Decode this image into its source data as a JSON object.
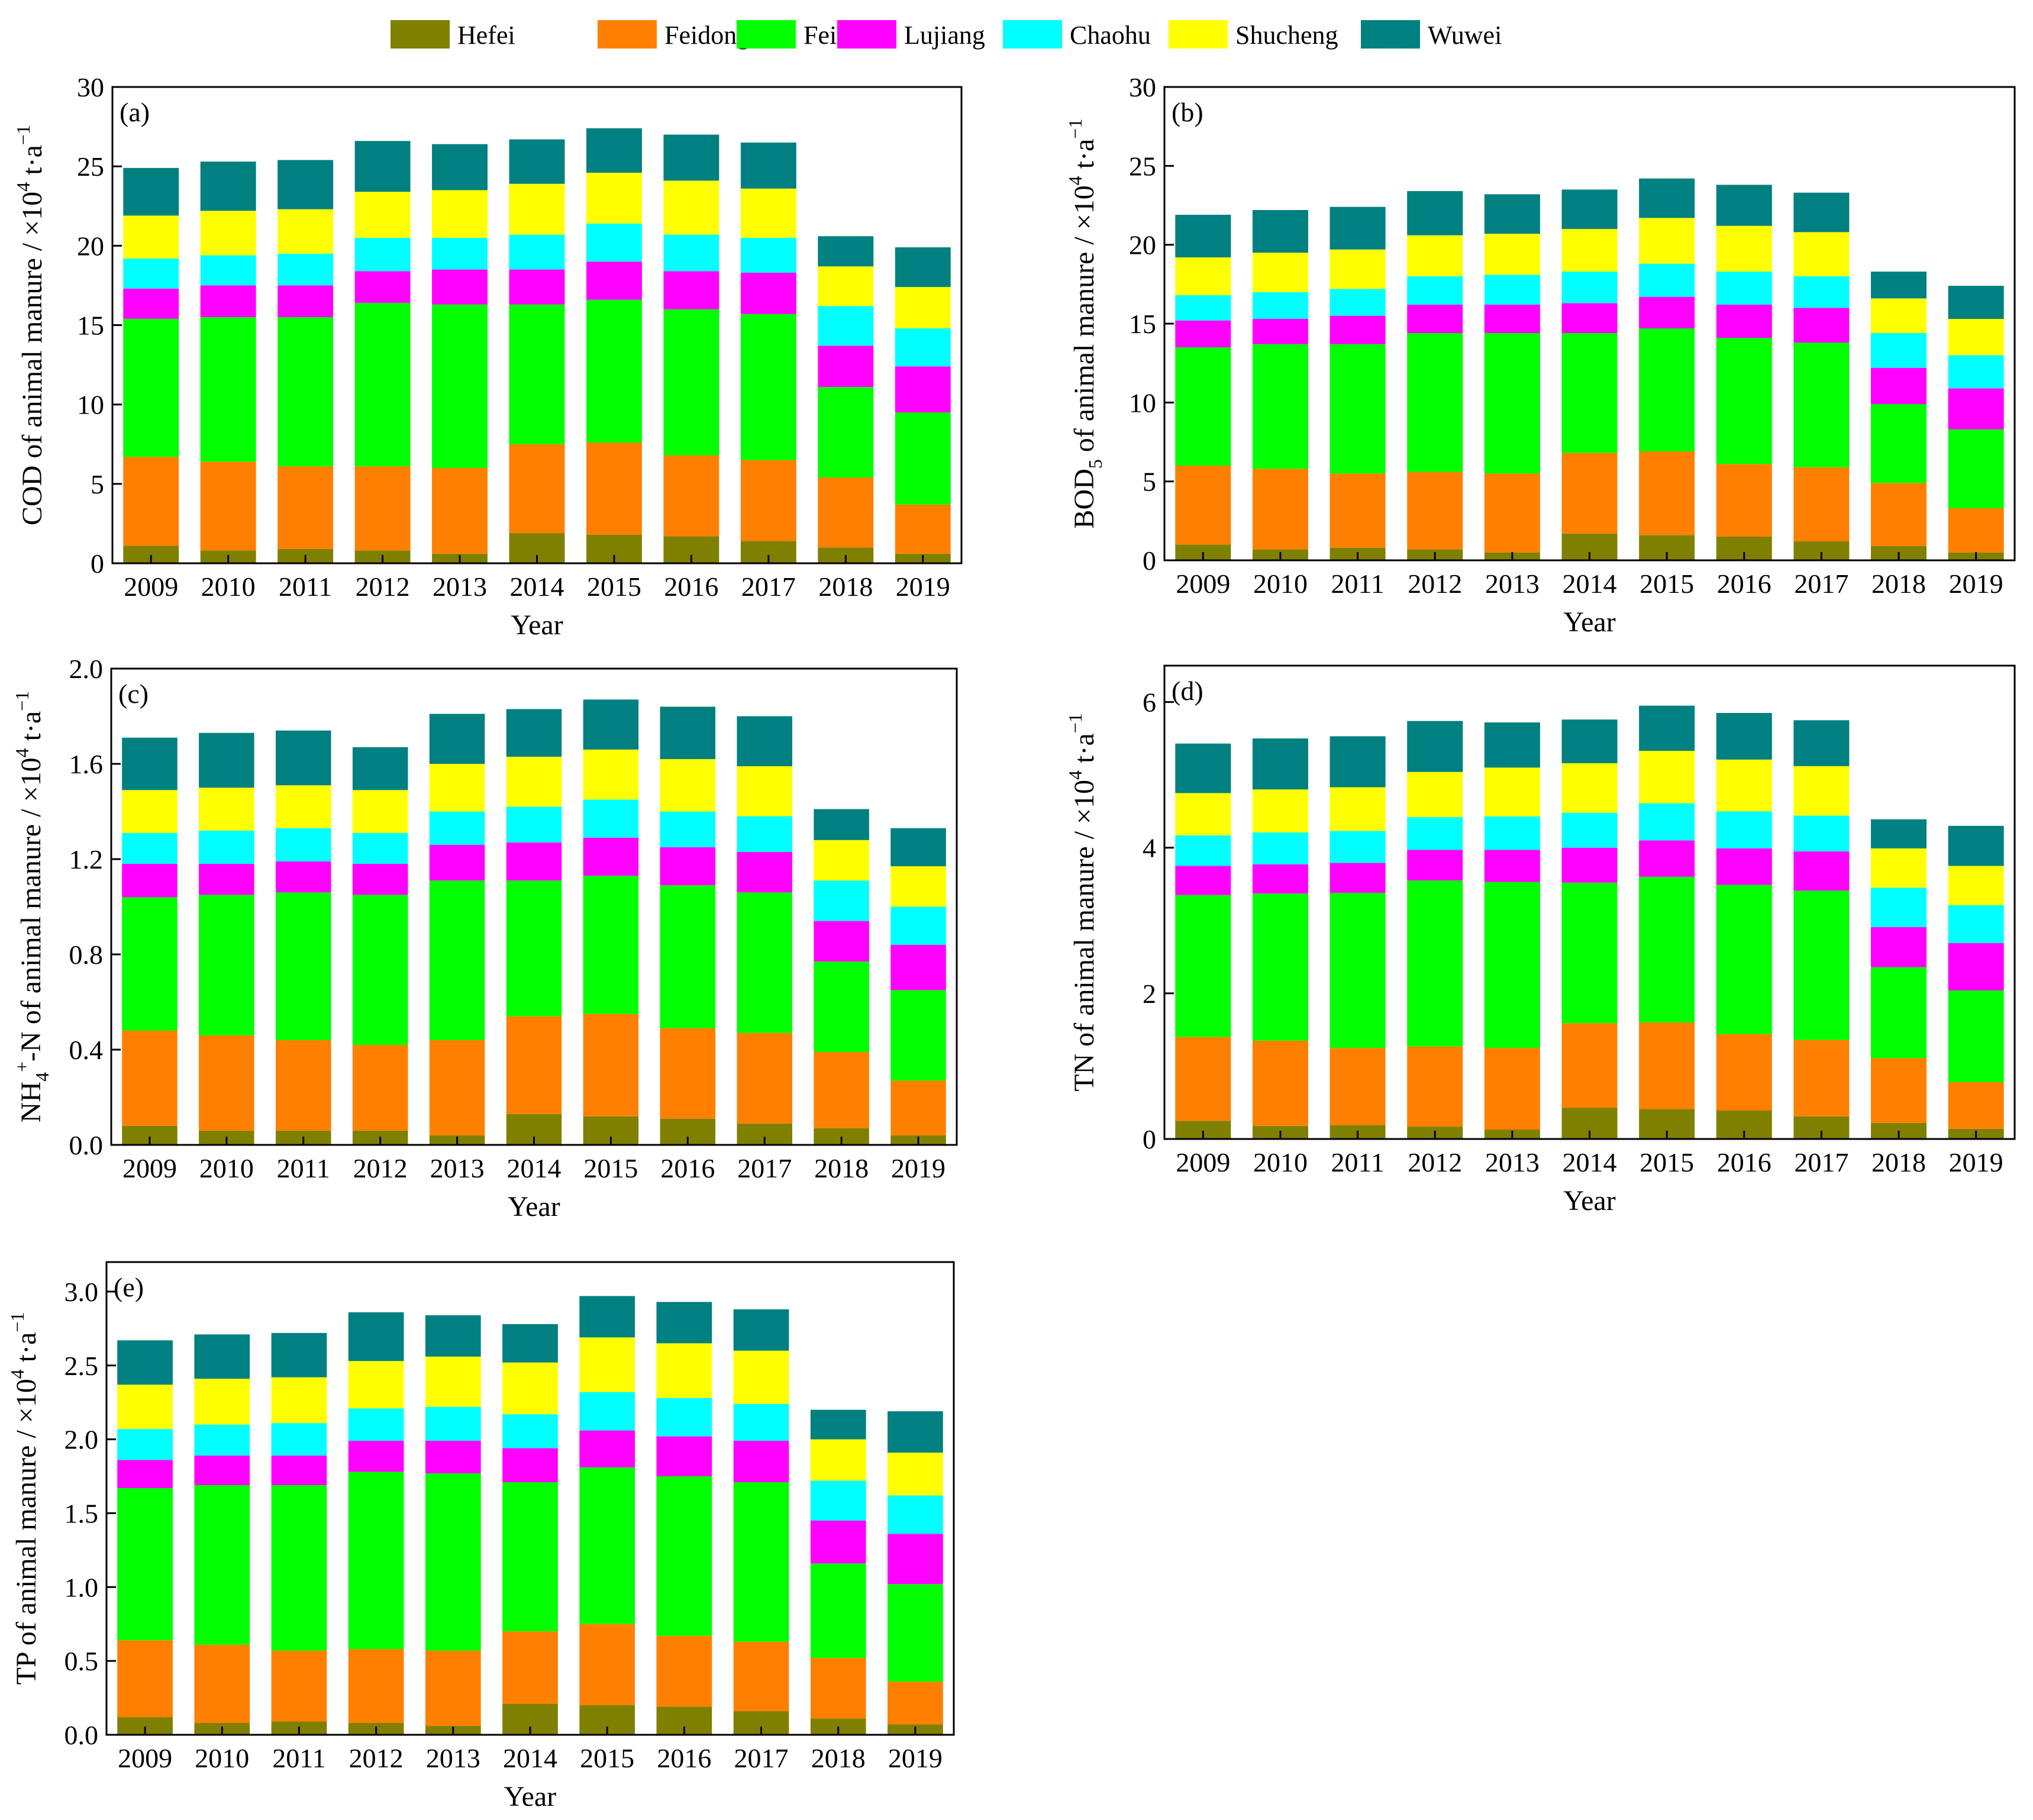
{
  "legend": [
    {
      "name": "Hefei",
      "color": "#808000"
    },
    {
      "name": "Feidong",
      "color": "#FF8000"
    },
    {
      "name": "Feixi",
      "color": "#00FF00"
    },
    {
      "name": "Lujiang",
      "color": "#FF00FF"
    },
    {
      "name": "Chaohu",
      "color": "#00FFFF"
    },
    {
      "name": "Shucheng",
      "color": "#FFFF00"
    },
    {
      "name": "Wuwei",
      "color": "#008080"
    }
  ],
  "chart_data": [
    {
      "type": "bar",
      "stacked": true,
      "panel_label": "(a)",
      "xlabel": "Year",
      "ylabel": "COD of animal manure / ×10⁴ t·a⁻¹",
      "ylim": [
        0,
        30
      ],
      "yticks": [
        "0",
        "5",
        "10",
        "15",
        "20",
        "25",
        "30"
      ],
      "categories": [
        "2009",
        "2010",
        "2011",
        "2012",
        "2013",
        "2014",
        "2015",
        "2016",
        "2017",
        "2018",
        "2019"
      ],
      "series": [
        {
          "name": "Hefei",
          "values": [
            1.1,
            0.8,
            0.9,
            0.8,
            0.6,
            1.9,
            1.8,
            1.7,
            1.4,
            1.0,
            0.6
          ]
        },
        {
          "name": "Feidong",
          "values": [
            5.6,
            5.6,
            5.2,
            5.3,
            5.4,
            5.6,
            5.8,
            5.1,
            5.1,
            4.4,
            3.1
          ]
        },
        {
          "name": "Feixi",
          "values": [
            8.7,
            9.1,
            9.4,
            10.3,
            10.3,
            8.8,
            9.0,
            9.2,
            9.2,
            5.7,
            5.8
          ]
        },
        {
          "name": "Lujiang",
          "values": [
            1.9,
            2.0,
            2.0,
            2.0,
            2.2,
            2.2,
            2.4,
            2.4,
            2.6,
            2.6,
            2.9
          ]
        },
        {
          "name": "Chaohu",
          "values": [
            1.9,
            1.9,
            2.0,
            2.1,
            2.0,
            2.2,
            2.4,
            2.3,
            2.2,
            2.5,
            2.4
          ]
        },
        {
          "name": "Shucheng",
          "values": [
            2.7,
            2.8,
            2.8,
            2.9,
            3.0,
            3.2,
            3.2,
            3.4,
            3.1,
            2.5,
            2.6
          ]
        },
        {
          "name": "Wuwei",
          "values": [
            3.0,
            3.1,
            3.1,
            3.2,
            2.9,
            2.8,
            2.8,
            2.9,
            2.9,
            1.9,
            2.5
          ]
        }
      ]
    },
    {
      "type": "bar",
      "stacked": true,
      "panel_label": "(b)",
      "xlabel": "Year",
      "ylabel": "BOD₅ of animal manure / ×10⁴ t·a⁻¹",
      "ylim": [
        0,
        30
      ],
      "yticks": [
        "0",
        "5",
        "10",
        "15",
        "20",
        "25",
        "30"
      ],
      "categories": [
        "2009",
        "2010",
        "2011",
        "2012",
        "2013",
        "2014",
        "2015",
        "2016",
        "2017",
        "2018",
        "2019"
      ],
      "series": [
        {
          "name": "Hefei",
          "values": [
            1.0,
            0.7,
            0.8,
            0.7,
            0.5,
            1.7,
            1.6,
            1.5,
            1.2,
            0.9,
            0.5
          ]
        },
        {
          "name": "Feidong",
          "values": [
            5.0,
            5.1,
            4.7,
            4.9,
            5.0,
            5.1,
            5.3,
            4.6,
            4.7,
            4.0,
            2.8
          ]
        },
        {
          "name": "Feixi",
          "values": [
            7.5,
            7.9,
            8.2,
            8.8,
            8.9,
            7.6,
            7.8,
            8.0,
            7.9,
            5.0,
            5.0
          ]
        },
        {
          "name": "Lujiang",
          "values": [
            1.7,
            1.6,
            1.8,
            1.8,
            1.8,
            1.9,
            2.0,
            2.1,
            2.2,
            2.3,
            2.6
          ]
        },
        {
          "name": "Chaohu",
          "values": [
            1.6,
            1.7,
            1.7,
            1.8,
            1.9,
            2.0,
            2.1,
            2.1,
            2.0,
            2.2,
            2.1
          ]
        },
        {
          "name": "Shucheng",
          "values": [
            2.4,
            2.5,
            2.5,
            2.6,
            2.6,
            2.7,
            2.9,
            2.9,
            2.8,
            2.2,
            2.3
          ]
        },
        {
          "name": "Wuwei",
          "values": [
            2.7,
            2.7,
            2.7,
            2.8,
            2.5,
            2.5,
            2.5,
            2.6,
            2.5,
            1.7,
            2.1
          ]
        }
      ]
    },
    {
      "type": "bar",
      "stacked": true,
      "panel_label": "(c)",
      "xlabel": "Year",
      "ylabel": "NH₄⁺-N of animal manure / ×10⁴ t·a⁻¹",
      "ylim": [
        0,
        2.0
      ],
      "yticks": [
        "0.0",
        "0.4",
        "0.8",
        "1.2",
        "1.6",
        "2.0"
      ],
      "categories": [
        "2009",
        "2010",
        "2011",
        "2012",
        "2013",
        "2014",
        "2015",
        "2016",
        "2017",
        "2018",
        "2019"
      ],
      "series": [
        {
          "name": "Hefei",
          "values": [
            0.08,
            0.06,
            0.06,
            0.06,
            0.04,
            0.13,
            0.12,
            0.11,
            0.09,
            0.07,
            0.04
          ]
        },
        {
          "name": "Feidong",
          "values": [
            0.4,
            0.4,
            0.38,
            0.36,
            0.4,
            0.41,
            0.43,
            0.38,
            0.38,
            0.32,
            0.23
          ]
        },
        {
          "name": "Feixi",
          "values": [
            0.56,
            0.59,
            0.62,
            0.63,
            0.67,
            0.57,
            0.58,
            0.6,
            0.59,
            0.38,
            0.38
          ]
        },
        {
          "name": "Lujiang",
          "values": [
            0.14,
            0.13,
            0.13,
            0.13,
            0.15,
            0.16,
            0.16,
            0.16,
            0.17,
            0.17,
            0.19
          ]
        },
        {
          "name": "Chaohu",
          "values": [
            0.13,
            0.14,
            0.14,
            0.13,
            0.14,
            0.15,
            0.16,
            0.15,
            0.15,
            0.17,
            0.16
          ]
        },
        {
          "name": "Shucheng",
          "values": [
            0.18,
            0.18,
            0.18,
            0.18,
            0.2,
            0.21,
            0.21,
            0.22,
            0.21,
            0.17,
            0.17
          ]
        },
        {
          "name": "Wuwei",
          "values": [
            0.22,
            0.23,
            0.23,
            0.18,
            0.21,
            0.2,
            0.21,
            0.22,
            0.21,
            0.13,
            0.16
          ]
        }
      ]
    },
    {
      "type": "bar",
      "stacked": true,
      "panel_label": "(d)",
      "xlabel": "Year",
      "ylabel": "TN of animal manure / ×10⁴ t·a⁻¹",
      "ylim": [
        0,
        6.5
      ],
      "yticks": [
        "0",
        "2",
        "4",
        "6"
      ],
      "ytick_values": [
        0,
        2,
        4,
        6
      ],
      "categories": [
        "2009",
        "2010",
        "2011",
        "2012",
        "2013",
        "2014",
        "2015",
        "2016",
        "2017",
        "2018",
        "2019"
      ],
      "series": [
        {
          "name": "Hefei",
          "values": [
            0.25,
            0.18,
            0.19,
            0.17,
            0.13,
            0.43,
            0.41,
            0.39,
            0.31,
            0.22,
            0.14
          ]
        },
        {
          "name": "Feidong",
          "values": [
            1.15,
            1.17,
            1.06,
            1.1,
            1.12,
            1.16,
            1.19,
            1.05,
            1.05,
            0.89,
            0.64
          ]
        },
        {
          "name": "Feixi",
          "values": [
            1.95,
            2.02,
            2.13,
            2.28,
            2.28,
            1.93,
            2.0,
            2.05,
            2.05,
            1.25,
            1.26
          ]
        },
        {
          "name": "Lujiang",
          "values": [
            0.4,
            0.4,
            0.41,
            0.42,
            0.44,
            0.48,
            0.5,
            0.5,
            0.54,
            0.55,
            0.65
          ]
        },
        {
          "name": "Chaohu",
          "values": [
            0.42,
            0.44,
            0.44,
            0.45,
            0.46,
            0.48,
            0.51,
            0.51,
            0.49,
            0.54,
            0.52
          ]
        },
        {
          "name": "Shucheng",
          "values": [
            0.58,
            0.59,
            0.6,
            0.62,
            0.67,
            0.68,
            0.72,
            0.71,
            0.68,
            0.54,
            0.54
          ]
        },
        {
          "name": "Wuwei",
          "values": [
            0.68,
            0.7,
            0.7,
            0.7,
            0.62,
            0.6,
            0.62,
            0.64,
            0.63,
            0.4,
            0.55
          ]
        }
      ]
    },
    {
      "type": "bar",
      "stacked": true,
      "panel_label": "(e)",
      "xlabel": "Year",
      "ylabel": "TP of animal manure / ×10⁴ t·a⁻¹",
      "ylim": [
        0,
        3.2
      ],
      "yticks": [
        "0.0",
        "0.5",
        "1.0",
        "1.5",
        "2.0",
        "2.5",
        "3.0"
      ],
      "ytick_values": [
        0,
        0.5,
        1.0,
        1.5,
        2.0,
        2.5,
        3.0
      ],
      "categories": [
        "2009",
        "2010",
        "2011",
        "2012",
        "2013",
        "2014",
        "2015",
        "2016",
        "2017",
        "2018",
        "2019"
      ],
      "series": [
        {
          "name": "Hefei",
          "values": [
            0.12,
            0.08,
            0.09,
            0.08,
            0.06,
            0.21,
            0.2,
            0.19,
            0.16,
            0.11,
            0.07
          ]
        },
        {
          "name": "Feidong",
          "values": [
            0.52,
            0.53,
            0.48,
            0.5,
            0.51,
            0.49,
            0.55,
            0.48,
            0.47,
            0.41,
            0.29
          ]
        },
        {
          "name": "Feixi",
          "values": [
            1.03,
            1.08,
            1.12,
            1.2,
            1.2,
            1.01,
            1.06,
            1.08,
            1.08,
            0.64,
            0.66
          ]
        },
        {
          "name": "Lujiang",
          "values": [
            0.19,
            0.2,
            0.2,
            0.21,
            0.22,
            0.23,
            0.25,
            0.27,
            0.28,
            0.29,
            0.34
          ]
        },
        {
          "name": "Chaohu",
          "values": [
            0.21,
            0.21,
            0.22,
            0.22,
            0.23,
            0.23,
            0.26,
            0.26,
            0.25,
            0.27,
            0.26
          ]
        },
        {
          "name": "Shucheng",
          "values": [
            0.3,
            0.31,
            0.31,
            0.32,
            0.34,
            0.35,
            0.37,
            0.37,
            0.36,
            0.28,
            0.29
          ]
        },
        {
          "name": "Wuwei",
          "values": [
            0.3,
            0.3,
            0.3,
            0.33,
            0.28,
            0.26,
            0.28,
            0.28,
            0.28,
            0.2,
            0.28
          ]
        }
      ]
    }
  ]
}
